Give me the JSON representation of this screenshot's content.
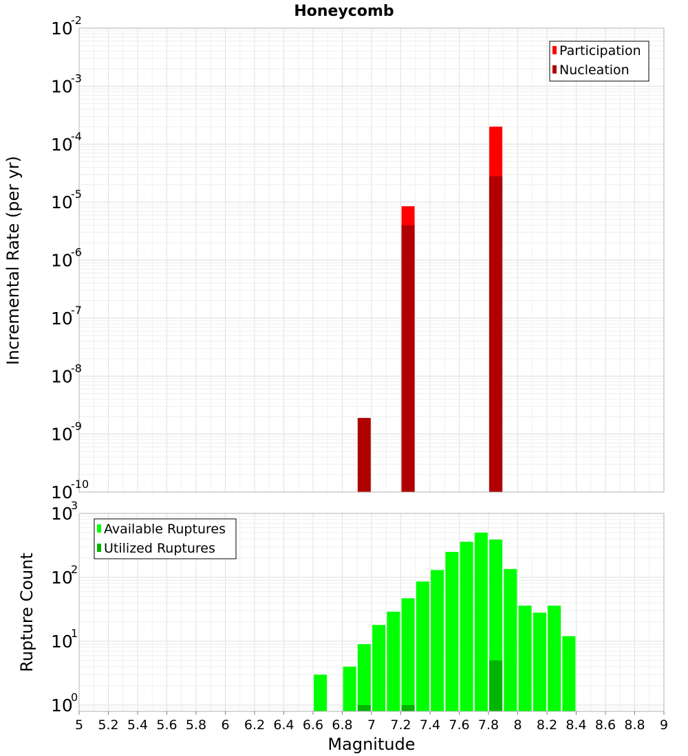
{
  "chart_data": [
    {
      "type": "bar",
      "title": "Honeycomb",
      "ylabel": "Incremental Rate (per yr)",
      "xlabel": "",
      "yscale": "log",
      "ylim": [
        1e-10,
        0.01
      ],
      "xlim": [
        5,
        9
      ],
      "grid": true,
      "legend_position": "top-right",
      "y_tick_labels": [
        {
          "base": "10",
          "exp": "-10"
        },
        {
          "base": "10",
          "exp": "-9"
        },
        {
          "base": "10",
          "exp": "-8"
        },
        {
          "base": "10",
          "exp": "-7"
        },
        {
          "base": "10",
          "exp": "-6"
        },
        {
          "base": "10",
          "exp": "-5"
        },
        {
          "base": "10",
          "exp": "-4"
        },
        {
          "base": "10",
          "exp": "-3"
        },
        {
          "base": "10",
          "exp": "-2"
        }
      ],
      "series": [
        {
          "name": "Participation",
          "color": "#ff0000",
          "x": [
            7.25,
            7.85
          ],
          "values": [
            8.5e-06,
            0.0002
          ]
        },
        {
          "name": "Nucleation",
          "color": "#b00000",
          "x": [
            6.95,
            7.25,
            7.85
          ],
          "values": [
            1.9e-09,
            4e-06,
            2.8e-05
          ]
        }
      ]
    },
    {
      "type": "bar",
      "title": "",
      "ylabel": "Rupture Count",
      "xlabel": "Magnitude",
      "yscale": "log",
      "ylim": [
        0.8,
        1000
      ],
      "xlim": [
        5,
        9
      ],
      "grid": true,
      "legend_position": "top-left",
      "x_tick_labels": [
        "5",
        "5.2",
        "5.4",
        "5.6",
        "5.8",
        "6",
        "6.2",
        "6.4",
        "6.6",
        "6.8",
        "7",
        "7.2",
        "7.4",
        "7.6",
        "7.8",
        "8",
        "8.2",
        "8.4",
        "8.6",
        "8.8",
        "9"
      ],
      "y_tick_labels": [
        {
          "base": "10",
          "exp": "0"
        },
        {
          "base": "10",
          "exp": "1"
        },
        {
          "base": "10",
          "exp": "2"
        },
        {
          "base": "10",
          "exp": "3"
        }
      ],
      "series": [
        {
          "name": "Available Ruptures",
          "color": "#00ff00",
          "x": [
            6.65,
            6.85,
            6.95,
            7.05,
            7.15,
            7.25,
            7.35,
            7.45,
            7.55,
            7.65,
            7.75,
            7.85,
            7.95,
            8.05,
            8.15,
            8.25,
            8.35
          ],
          "values": [
            3,
            4,
            9,
            18,
            29,
            47,
            86,
            130,
            250,
            360,
            500,
            390,
            135,
            36,
            28,
            36,
            12
          ]
        },
        {
          "name": "Utilized Ruptures",
          "color": "#00b400",
          "x": [
            6.95,
            7.25,
            7.85
          ],
          "values": [
            1,
            1,
            5
          ]
        }
      ]
    }
  ]
}
